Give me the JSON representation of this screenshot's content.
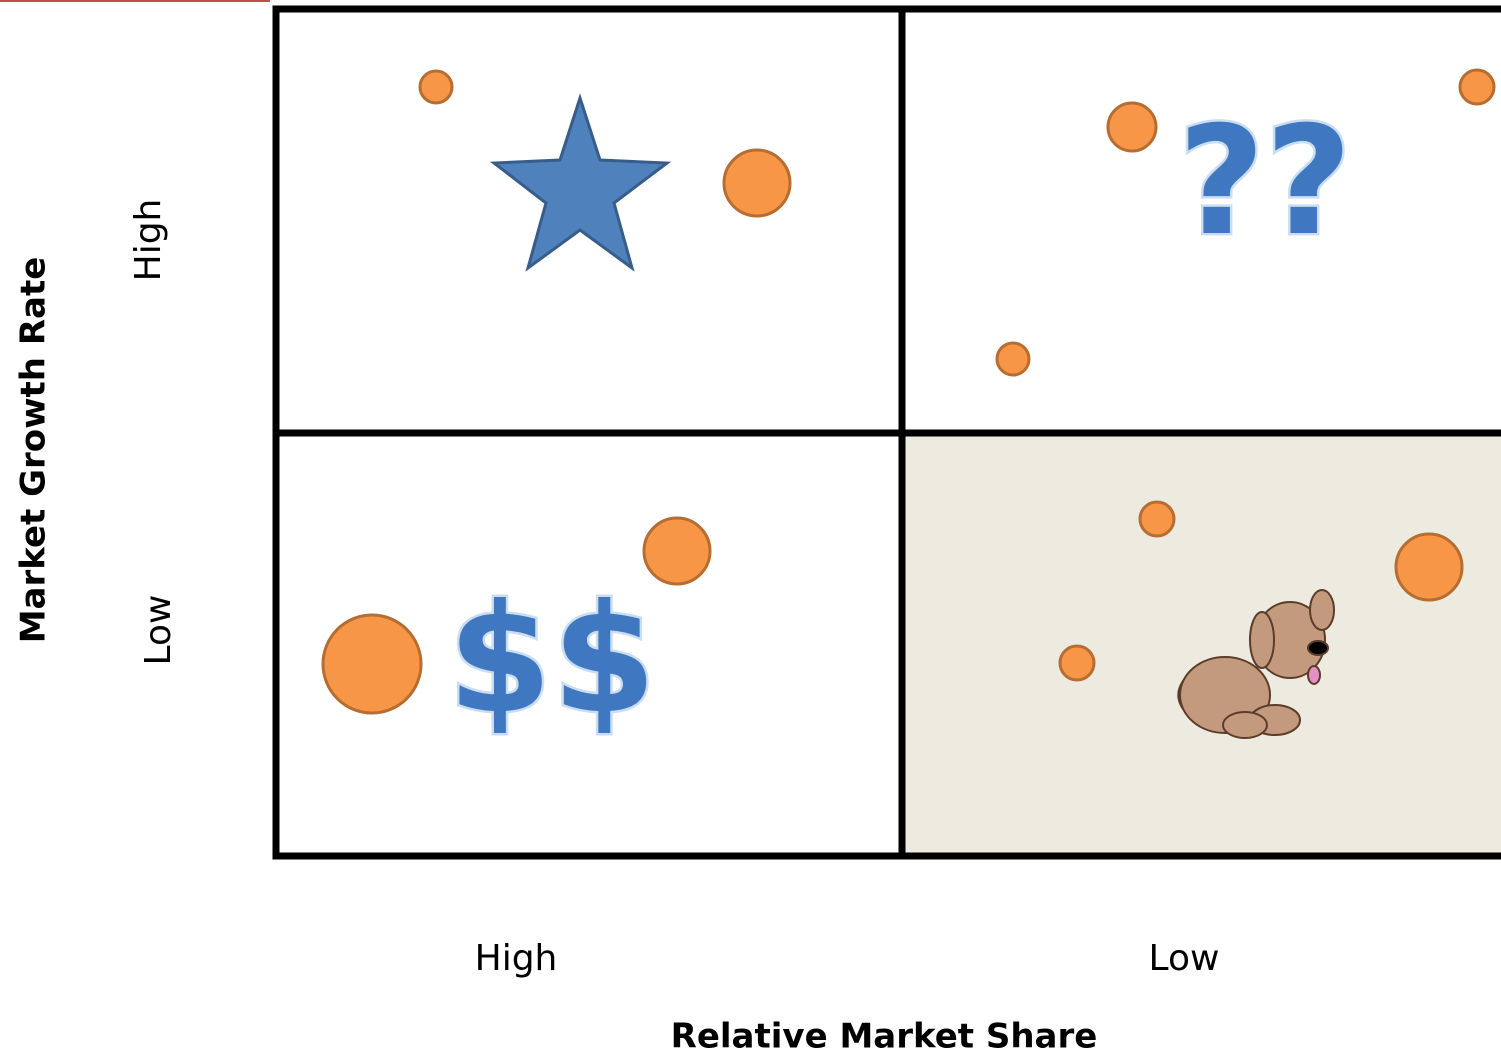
{
  "axes": {
    "y_title": "Market Growth Rate",
    "y_labels": [
      "High",
      "Low"
    ],
    "x_labels": [
      "High",
      "Low"
    ],
    "x_title": "Relative Market Share"
  },
  "quadrants": {
    "question_marks": "??",
    "cash_cows": "$$"
  }
}
